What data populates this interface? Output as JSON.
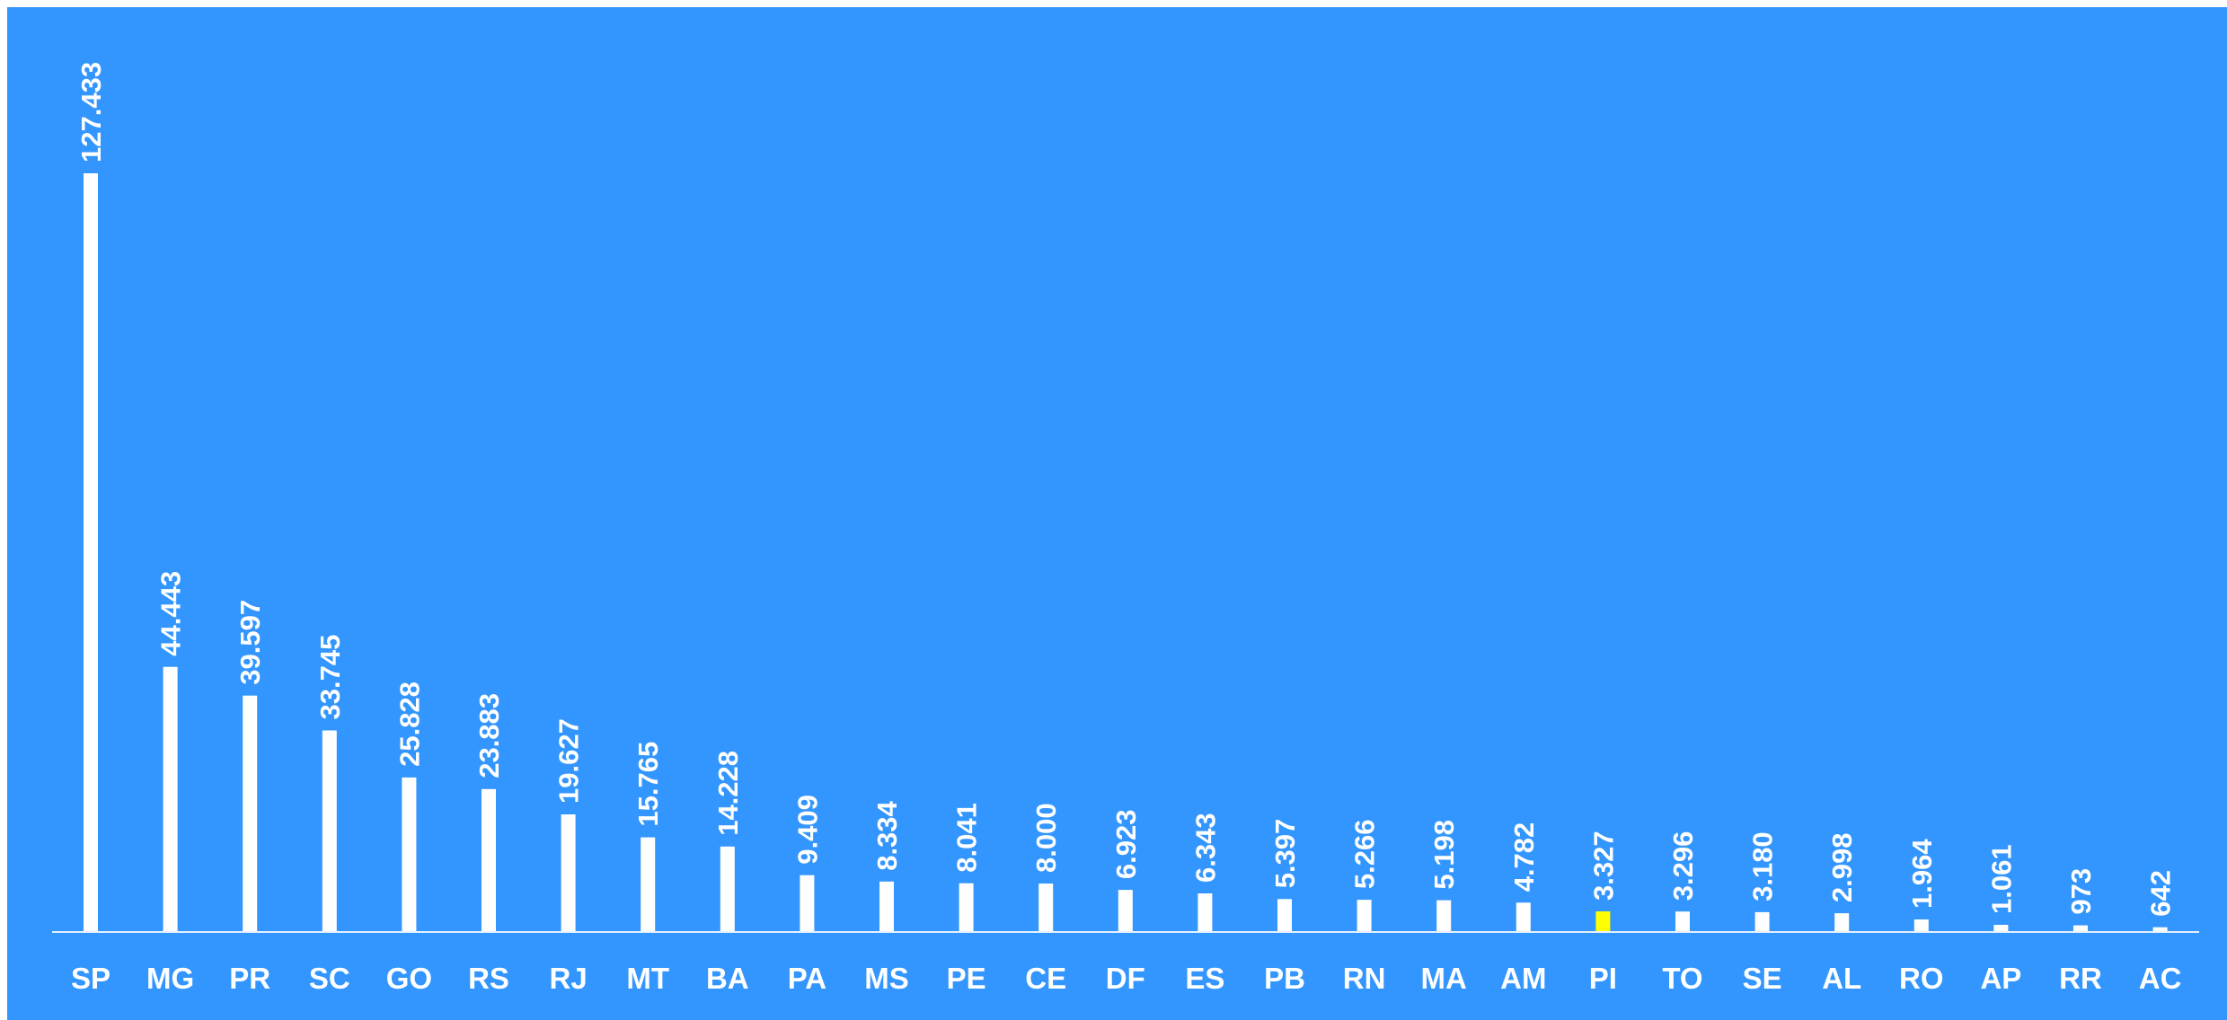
{
  "colors": {
    "background": "#3396fe",
    "bar": "#ffffff",
    "highlight_bar": "#ffff00",
    "text": "#ffffff",
    "axis": "#e6f0ff"
  },
  "chart_data": {
    "type": "bar",
    "title": "",
    "xlabel": "",
    "ylabel": "",
    "ylim": [
      0,
      140000
    ],
    "grid": false,
    "legend": "none",
    "categories": [
      "SP",
      "MG",
      "PR",
      "SC",
      "GO",
      "RS",
      "RJ",
      "MT",
      "BA",
      "PA",
      "MS",
      "PE",
      "CE",
      "DF",
      "ES",
      "PB",
      "RN",
      "MA",
      "AM",
      "PI",
      "TO",
      "SE",
      "AL",
      "RO",
      "AP",
      "RR",
      "AC"
    ],
    "values": [
      127433,
      44443,
      39597,
      33745,
      25828,
      23883,
      19627,
      15765,
      14228,
      9409,
      8334,
      8041,
      8000,
      6923,
      6343,
      5397,
      5266,
      5198,
      4782,
      3327,
      3296,
      3180,
      2998,
      1964,
      1061,
      973,
      642
    ],
    "data_labels": [
      "127.433",
      "44.443",
      "39.597",
      "33.745",
      "25.828",
      "23.883",
      "19.627",
      "15.765",
      "14.228",
      "9.409",
      "8.334",
      "8.041",
      "8.000",
      "6.923",
      "6.343",
      "5.397",
      "5.266",
      "5.198",
      "4.782",
      "3.327",
      "3.296",
      "3.180",
      "2.998",
      "1.964",
      "1.061",
      "973",
      "642"
    ],
    "highlight_category": "PI"
  }
}
